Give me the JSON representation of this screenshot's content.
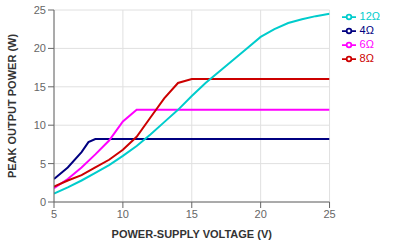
{
  "chart_data": {
    "type": "line",
    "xlabel": "POWER-SUPPLY VOLTAGE (V)",
    "ylabel": "PEAK OUTPUT POWER (W)",
    "xlim": [
      5,
      25
    ],
    "ylim": [
      0,
      25
    ],
    "xticks": [
      5,
      10,
      15,
      20,
      25
    ],
    "yticks": [
      0,
      5,
      10,
      15,
      20,
      25
    ],
    "grid": true,
    "legend": "right",
    "series": [
      {
        "name": "4Ω",
        "color": "#000080",
        "x": [
          5,
          6,
          7,
          7.5,
          8,
          8.5,
          9,
          10,
          11,
          12,
          13,
          14,
          15,
          16,
          17,
          18,
          19,
          20,
          21,
          22,
          23,
          24,
          25
        ],
        "values": [
          3.0,
          4.5,
          6.5,
          7.8,
          8.2,
          8.2,
          8.2,
          8.2,
          8.2,
          8.2,
          8.2,
          8.2,
          8.2,
          8.2,
          8.2,
          8.2,
          8.2,
          8.2,
          8.2,
          8.2,
          8.2,
          8.2,
          8.2
        ]
      },
      {
        "name": "6Ω",
        "color": "#ff00ff",
        "x": [
          5,
          6,
          7,
          8,
          9,
          10,
          11,
          11.5,
          12,
          13,
          14,
          15,
          16,
          17,
          18,
          19,
          20,
          21,
          22,
          23,
          24,
          25
        ],
        "values": [
          1.8,
          3.0,
          4.5,
          6.2,
          8.0,
          10.5,
          12.0,
          12.0,
          12.0,
          12.0,
          12.0,
          12.0,
          12.0,
          12.0,
          12.0,
          12.0,
          12.0,
          12.0,
          12.0,
          12.0,
          12.0,
          12.0
        ]
      },
      {
        "name": "8Ω",
        "color": "#cc0000",
        "x": [
          5,
          6,
          7,
          8,
          9,
          10,
          11,
          12,
          13,
          14,
          15,
          15.5,
          16,
          17,
          18,
          19,
          20,
          21,
          22,
          23,
          24,
          25
        ],
        "values": [
          2.0,
          2.8,
          3.5,
          4.5,
          5.5,
          6.8,
          8.5,
          11.0,
          13.5,
          15.5,
          16.0,
          16.0,
          16.0,
          16.0,
          16.0,
          16.0,
          16.0,
          16.0,
          16.0,
          16.0,
          16.0,
          16.0
        ]
      },
      {
        "name": "12Ω",
        "color": "#00cccc",
        "x": [
          5,
          6,
          7,
          8,
          9,
          10,
          11,
          12,
          13,
          14,
          15,
          16,
          17,
          18,
          19,
          20,
          21,
          22,
          23,
          24,
          25
        ],
        "values": [
          1.1,
          1.9,
          2.8,
          3.8,
          4.8,
          6.0,
          7.3,
          8.8,
          10.4,
          12.0,
          13.8,
          15.5,
          17.0,
          18.5,
          20.0,
          21.5,
          22.5,
          23.3,
          23.8,
          24.2,
          24.5
        ]
      }
    ]
  }
}
